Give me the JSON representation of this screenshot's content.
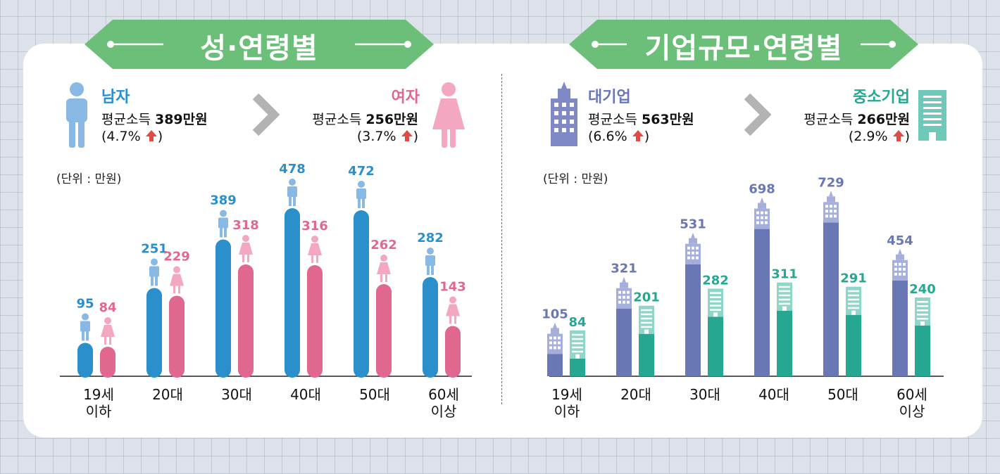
{
  "colors": {
    "banner": "#6cbf78",
    "male": "#2a8fca",
    "female": "#e0688f",
    "large": "#6977b5",
    "sme": "#26a792",
    "up_arrow": "#e14b43",
    "chevron": "#b3b3b3"
  },
  "left": {
    "banner_title": "성·연령별",
    "male": {
      "label": "남자",
      "income_label": "평균소득",
      "income_value": "389만원",
      "change": "(4.7%",
      "close": ")"
    },
    "female": {
      "label": "여자",
      "income_label": "평균소득",
      "income_value": "256만원",
      "change": "(3.7%",
      "close": ")"
    },
    "unit": "(단위 : 만원)"
  },
  "right": {
    "banner_title": "기업규모·연령별",
    "large": {
      "label": "대기업",
      "income_label": "평균소득",
      "income_value": "563만원",
      "change": "(6.6%",
      "close": ")"
    },
    "sme": {
      "label": "중소기업",
      "income_label": "평균소득",
      "income_value": "266만원",
      "change": "(2.9%",
      "close": ")"
    },
    "unit": "(단위 : 만원)"
  },
  "chart_data": [
    {
      "type": "bar",
      "title": "성·연령별",
      "categories": [
        "19세\n이하",
        "20대",
        "30대",
        "40대",
        "50대",
        "60세\n이상"
      ],
      "series": [
        {
          "name": "남자",
          "values": [
            95,
            251,
            389,
            478,
            472,
            282
          ]
        },
        {
          "name": "여자",
          "values": [
            84,
            229,
            318,
            316,
            262,
            143
          ]
        }
      ],
      "unit": "만원",
      "ylim": [
        0,
        500
      ]
    },
    {
      "type": "bar",
      "title": "기업규모·연령별",
      "categories": [
        "19세\n이하",
        "20대",
        "30대",
        "40대",
        "50대",
        "60세\n이상"
      ],
      "series": [
        {
          "name": "대기업",
          "values": [
            105,
            321,
            531,
            698,
            729,
            454
          ]
        },
        {
          "name": "중소기업",
          "values": [
            84,
            201,
            282,
            311,
            291,
            240
          ]
        }
      ],
      "unit": "만원",
      "ylim": [
        0,
        760
      ]
    }
  ]
}
